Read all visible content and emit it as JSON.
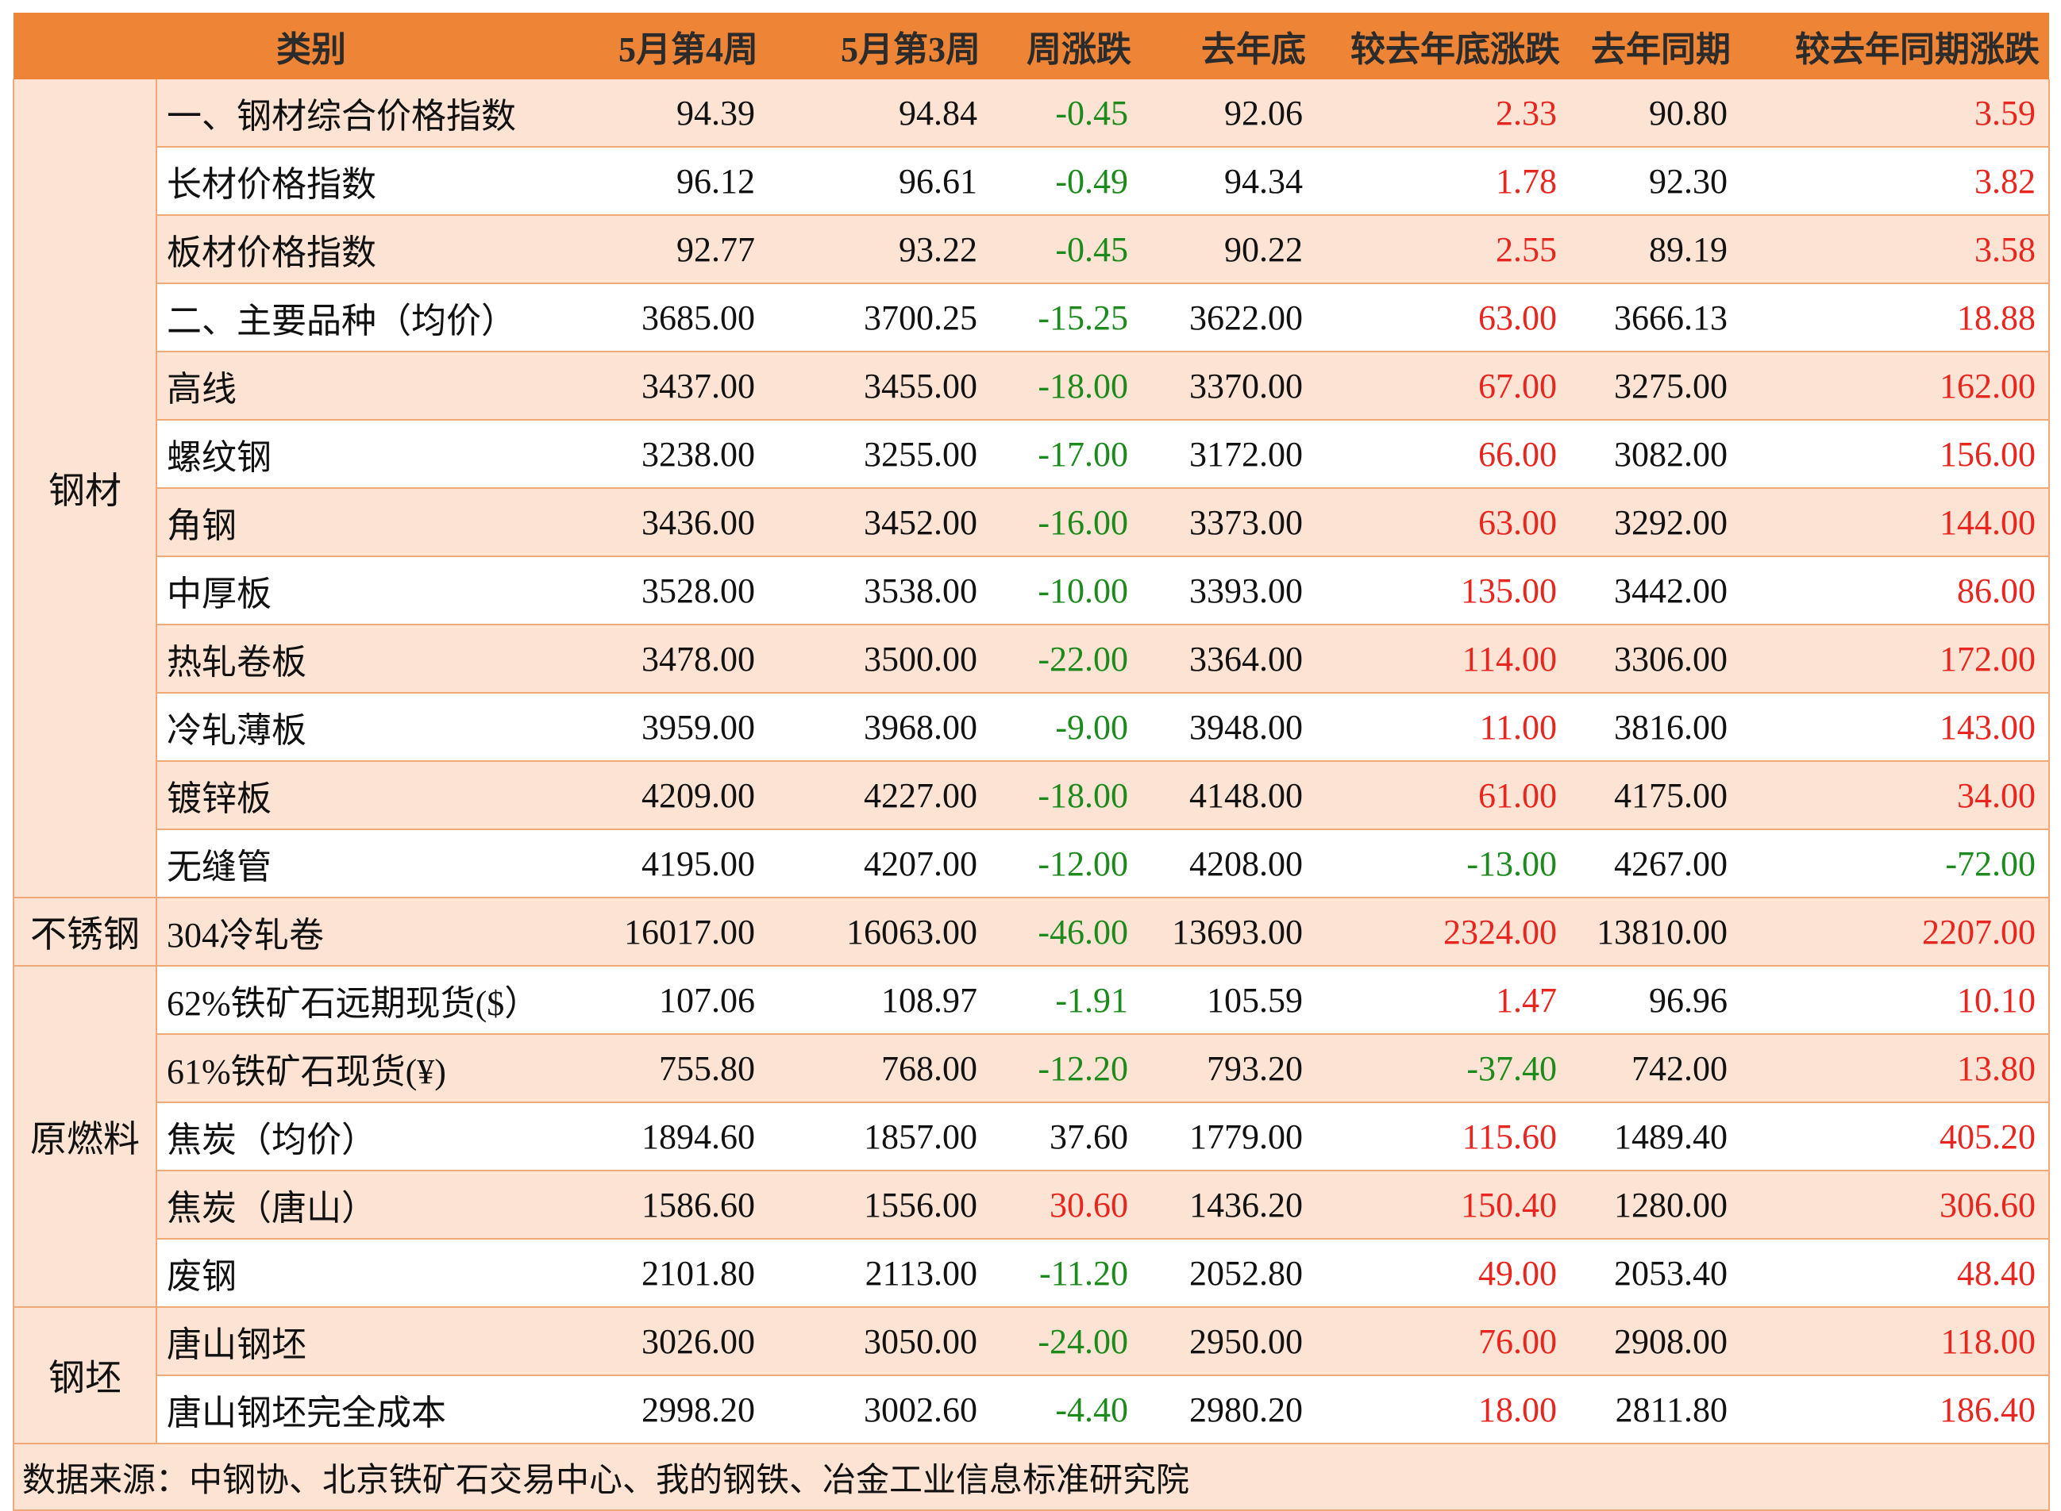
{
  "header": {
    "category": "类别",
    "wk4": "5月第4周",
    "wk3": "5月第3周",
    "weekly_change": "周涨跌",
    "last_year_end": "去年底",
    "vs_last_year_end": "较去年底涨跌",
    "same_period_last_year": "去年同期",
    "vs_same_period": "较去年同期涨跌"
  },
  "groups": [
    {
      "name": "钢材",
      "rows": [
        {
          "item": "一、钢材综合价格指数",
          "wk4": "94.39",
          "wk3": "94.84",
          "chg": "-0.45",
          "ye": "92.06",
          "chg_ye": "2.33",
          "ly": "90.80",
          "chg_ly": "3.59"
        },
        {
          "item": "长材价格指数",
          "wk4": "96.12",
          "wk3": "96.61",
          "chg": "-0.49",
          "ye": "94.34",
          "chg_ye": "1.78",
          "ly": "92.30",
          "chg_ly": "3.82"
        },
        {
          "item": "板材价格指数",
          "wk4": "92.77",
          "wk3": "93.22",
          "chg": "-0.45",
          "ye": "90.22",
          "chg_ye": "2.55",
          "ly": "89.19",
          "chg_ly": "3.58"
        },
        {
          "item": "二、主要品种（均价）",
          "wk4": "3685.00",
          "wk3": "3700.25",
          "chg": "-15.25",
          "ye": "3622.00",
          "chg_ye": "63.00",
          "ly": "3666.13",
          "chg_ly": "18.88"
        },
        {
          "item": "高线",
          "wk4": "3437.00",
          "wk3": "3455.00",
          "chg": "-18.00",
          "ye": "3370.00",
          "chg_ye": "67.00",
          "ly": "3275.00",
          "chg_ly": "162.00"
        },
        {
          "item": "螺纹钢",
          "wk4": "3238.00",
          "wk3": "3255.00",
          "chg": "-17.00",
          "ye": "3172.00",
          "chg_ye": "66.00",
          "ly": "3082.00",
          "chg_ly": "156.00"
        },
        {
          "item": "角钢",
          "wk4": "3436.00",
          "wk3": "3452.00",
          "chg": "-16.00",
          "ye": "3373.00",
          "chg_ye": "63.00",
          "ly": "3292.00",
          "chg_ly": "144.00"
        },
        {
          "item": "中厚板",
          "wk4": "3528.00",
          "wk3": "3538.00",
          "chg": "-10.00",
          "ye": "3393.00",
          "chg_ye": "135.00",
          "ly": "3442.00",
          "chg_ly": "86.00"
        },
        {
          "item": "热轧卷板",
          "wk4": "3478.00",
          "wk3": "3500.00",
          "chg": "-22.00",
          "ye": "3364.00",
          "chg_ye": "114.00",
          "ly": "3306.00",
          "chg_ly": "172.00"
        },
        {
          "item": "冷轧薄板",
          "wk4": "3959.00",
          "wk3": "3968.00",
          "chg": "-9.00",
          "ye": "3948.00",
          "chg_ye": "11.00",
          "ly": "3816.00",
          "chg_ly": "143.00"
        },
        {
          "item": "镀锌板",
          "wk4": "4209.00",
          "wk3": "4227.00",
          "chg": "-18.00",
          "ye": "4148.00",
          "chg_ye": "61.00",
          "ly": "4175.00",
          "chg_ly": "34.00"
        },
        {
          "item": "无缝管",
          "wk4": "4195.00",
          "wk3": "4207.00",
          "chg": "-12.00",
          "ye": "4208.00",
          "chg_ye": "-13.00",
          "ly": "4267.00",
          "chg_ly": "-72.00"
        }
      ]
    },
    {
      "name": "不锈钢",
      "rows": [
        {
          "item": "304冷轧卷",
          "wk4": "16017.00",
          "wk3": "16063.00",
          "chg": "-46.00",
          "ye": "13693.00",
          "chg_ye": "2324.00",
          "ly": "13810.00",
          "chg_ly": "2207.00"
        }
      ]
    },
    {
      "name": "原燃料",
      "rows": [
        {
          "item": "62%铁矿石远期现货($）",
          "wk4": "107.06",
          "wk3": "108.97",
          "chg": "-1.91",
          "ye": "105.59",
          "chg_ye": "1.47",
          "ly": "96.96",
          "chg_ly": "10.10"
        },
        {
          "item": "61%铁矿石现货(¥)",
          "wk4": "755.80",
          "wk3": "768.00",
          "chg": "-12.20",
          "ye": "793.20",
          "chg_ye": "-37.40",
          "ly": "742.00",
          "chg_ly": "13.80"
        },
        {
          "item": "焦炭（均价）",
          "wk4": "1894.60",
          "wk3": "1857.00",
          "chg": "37.60",
          "ye": "1779.00",
          "chg_ye": "115.60",
          "ly": "1489.40",
          "chg_ly": "405.20"
        },
        {
          "item": "焦炭（唐山）",
          "wk4": "1586.60",
          "wk3": "1556.00",
          "chg": "30.60",
          "ye": "1436.20",
          "chg_ye": "150.40",
          "ly": "1280.00",
          "chg_ly": "306.60"
        },
        {
          "item": "废钢",
          "wk4": "2101.80",
          "wk3": "2113.00",
          "chg": "-11.20",
          "ye": "2052.80",
          "chg_ye": "49.00",
          "ly": "2053.40",
          "chg_ly": "48.40"
        }
      ]
    },
    {
      "name": "钢坯",
      "rows": [
        {
          "item": "唐山钢坯",
          "wk4": "3026.00",
          "wk3": "3050.00",
          "chg": "-24.00",
          "ye": "2950.00",
          "chg_ye": "76.00",
          "ly": "2908.00",
          "chg_ly": "118.00"
        },
        {
          "item": "唐山钢坯完全成本",
          "wk4": "2998.20",
          "wk3": "3002.60",
          "chg": "-4.40",
          "ye": "2980.20",
          "chg_ye": "18.00",
          "ly": "2811.80",
          "chg_ly": "186.40"
        }
      ]
    }
  ],
  "color_overrides": {
    "焦炭（均价）": {
      "chg": "zero"
    },
    "焦炭（唐山）": {
      "chg": "pos"
    }
  },
  "footer": "数据来源：中钢协、北京铁矿石交易中心、我的钢铁、冶金工业信息标准研究院",
  "colors": {
    "header_bg": "#ee8435",
    "stripe": "#fde3d3",
    "negative": "#1d8a1d",
    "positive": "#e8261f",
    "border": "#f0a978"
  }
}
